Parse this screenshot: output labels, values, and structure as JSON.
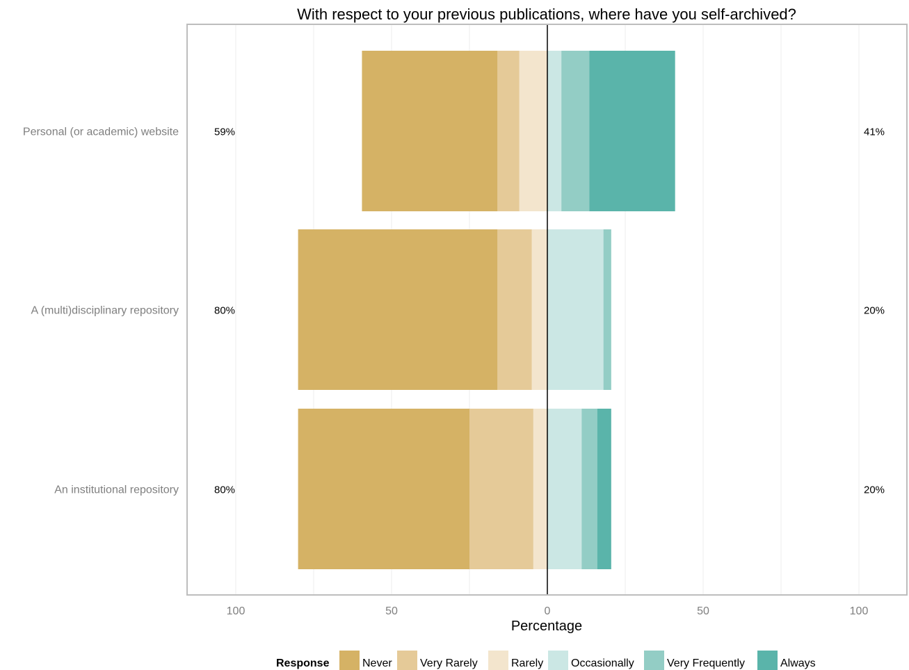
{
  "chart_data": {
    "type": "bar",
    "title": "With respect to your previous publications, where have you self-archived?",
    "xlabel": "Percentage",
    "ylabel": "",
    "xlim": [
      -100,
      100
    ],
    "x_ticks": [
      -100,
      -50,
      0,
      50,
      100
    ],
    "x_tick_labels": [
      "100",
      "50",
      "0",
      "50",
      "100"
    ],
    "categories": [
      "Personal (or academic) website",
      "A (multi)disciplinary repository",
      "An institutional repository"
    ],
    "negative_totals": [
      "59%",
      "80%",
      "80%"
    ],
    "positive_totals": [
      "41%",
      "20%",
      "20%"
    ],
    "legend": {
      "title": "Response",
      "position": "bottom"
    },
    "series": [
      {
        "name": "Never",
        "color": "#d5b265",
        "side": "negative",
        "values": [
          43.5,
          64,
          55
        ]
      },
      {
        "name": "Very Rarely",
        "color": "#e5ca98",
        "side": "negative",
        "values": [
          7,
          11,
          20.5
        ]
      },
      {
        "name": "Rarely",
        "color": "#f3e5cd",
        "side": "negative",
        "values": [
          9,
          5,
          4.5
        ]
      },
      {
        "name": "Occasionally",
        "color": "#cbe7e4",
        "side": "positive",
        "values": [
          4.5,
          18,
          11
        ]
      },
      {
        "name": "Very Frequently",
        "color": "#93cdc5",
        "side": "positive",
        "values": [
          9,
          2.5,
          5
        ]
      },
      {
        "name": "Always",
        "color": "#5ab4aa",
        "side": "positive",
        "values": [
          27.5,
          0,
          4.5
        ]
      }
    ],
    "grid": true,
    "zero_line": true
  }
}
